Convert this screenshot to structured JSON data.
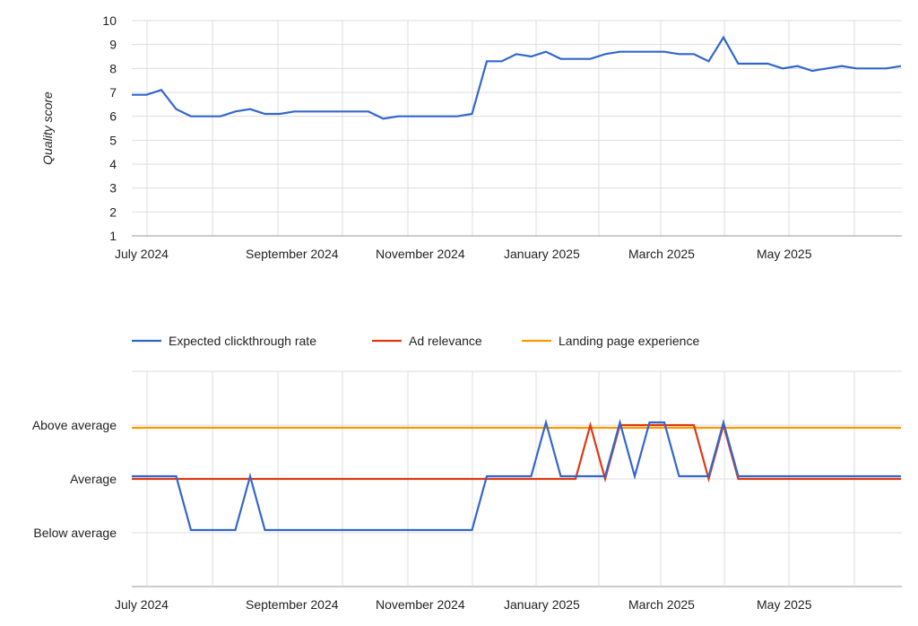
{
  "chart_data": [
    {
      "type": "line",
      "ylabel": "Quality score",
      "xlabel": "",
      "ylim": [
        1,
        10
      ],
      "yticks": [
        1,
        2,
        3,
        4,
        5,
        6,
        7,
        8,
        9,
        10
      ],
      "xtick_labels": [
        "July 2024",
        "September 2024",
        "November 2024",
        "January 2025",
        "March 2025",
        "May 2025"
      ],
      "grid": true,
      "x_start": "2024-06-24",
      "x_interval": "weekly",
      "series": [
        {
          "color": "#3366cc",
          "values": [
            6.9,
            6.9,
            7.1,
            6.3,
            6.0,
            6.0,
            6.0,
            6.2,
            6.3,
            6.1,
            6.1,
            6.2,
            6.2,
            6.2,
            6.2,
            6.2,
            6.2,
            5.9,
            6.0,
            6.0,
            6.0,
            6.0,
            6.0,
            6.1,
            8.3,
            8.3,
            8.6,
            8.5,
            8.7,
            8.4,
            8.4,
            8.4,
            8.6,
            8.7,
            8.7,
            8.7,
            8.7,
            8.6,
            8.6,
            8.3,
            9.3,
            8.2,
            8.2,
            8.2,
            8.0,
            8.1,
            7.9,
            8.0,
            8.1,
            8.0,
            8.0,
            8.0,
            8.1
          ]
        }
      ]
    },
    {
      "type": "line",
      "xlabel": "",
      "ylabel": "",
      "ycategories": [
        "Below average",
        "Average",
        "Above average"
      ],
      "xtick_labels": [
        "July 2024",
        "September 2024",
        "November 2024",
        "January 2025",
        "March 2025",
        "May 2025"
      ],
      "grid": true,
      "legend": "top",
      "x_start": "2024-06-24",
      "x_interval": "weekly",
      "series": [
        {
          "name": "Expected clickthrough rate",
          "color": "#3366cc",
          "values": [
            "Average",
            "Average",
            "Average",
            "Average",
            "Below average",
            "Below average",
            "Below average",
            "Below average",
            "Average",
            "Below average",
            "Below average",
            "Below average",
            "Below average",
            "Below average",
            "Below average",
            "Below average",
            "Below average",
            "Below average",
            "Below average",
            "Below average",
            "Below average",
            "Below average",
            "Below average",
            "Below average",
            "Average",
            "Average",
            "Average",
            "Average",
            "Above average",
            "Average",
            "Average",
            "Average",
            "Average",
            "Above average",
            "Average",
            "Above average",
            "Above average",
            "Average",
            "Average",
            "Average",
            "Above average",
            "Average",
            "Average",
            "Average",
            "Average",
            "Average",
            "Average",
            "Average",
            "Average",
            "Average",
            "Average",
            "Average",
            "Average"
          ]
        },
        {
          "name": "Ad relevance",
          "color": "#dc3912",
          "values": [
            "Average",
            "Average",
            "Average",
            "Average",
            "Average",
            "Average",
            "Average",
            "Average",
            "Average",
            "Average",
            "Average",
            "Average",
            "Average",
            "Average",
            "Average",
            "Average",
            "Average",
            "Average",
            "Average",
            "Average",
            "Average",
            "Average",
            "Average",
            "Average",
            "Average",
            "Average",
            "Average",
            "Average",
            "Average",
            "Average",
            "Average",
            "Above average",
            "Average",
            "Above average",
            "Above average",
            "Above average",
            "Above average",
            "Above average",
            "Above average",
            "Average",
            "Above average",
            "Average",
            "Average",
            "Average",
            "Average",
            "Average",
            "Average",
            "Average",
            "Average",
            "Average",
            "Average",
            "Average",
            "Average"
          ]
        },
        {
          "name": "Landing page experience",
          "color": "#ff9900",
          "values": [
            "Above average",
            "Above average",
            "Above average",
            "Above average",
            "Above average",
            "Above average",
            "Above average",
            "Above average",
            "Above average",
            "Above average",
            "Above average",
            "Above average",
            "Above average",
            "Above average",
            "Above average",
            "Above average",
            "Above average",
            "Above average",
            "Above average",
            "Above average",
            "Above average",
            "Above average",
            "Above average",
            "Above average",
            "Above average",
            "Above average",
            "Above average",
            "Above average",
            "Above average",
            "Above average",
            "Above average",
            "Above average",
            "Above average",
            "Above average",
            "Above average",
            "Above average",
            "Above average",
            "Above average",
            "Above average",
            "Above average",
            "Above average",
            "Above average",
            "Above average",
            "Above average",
            "Above average",
            "Above average",
            "Above average",
            "Above average",
            "Above average",
            "Above average",
            "Above average",
            "Above average",
            "Above average"
          ]
        }
      ]
    }
  ]
}
